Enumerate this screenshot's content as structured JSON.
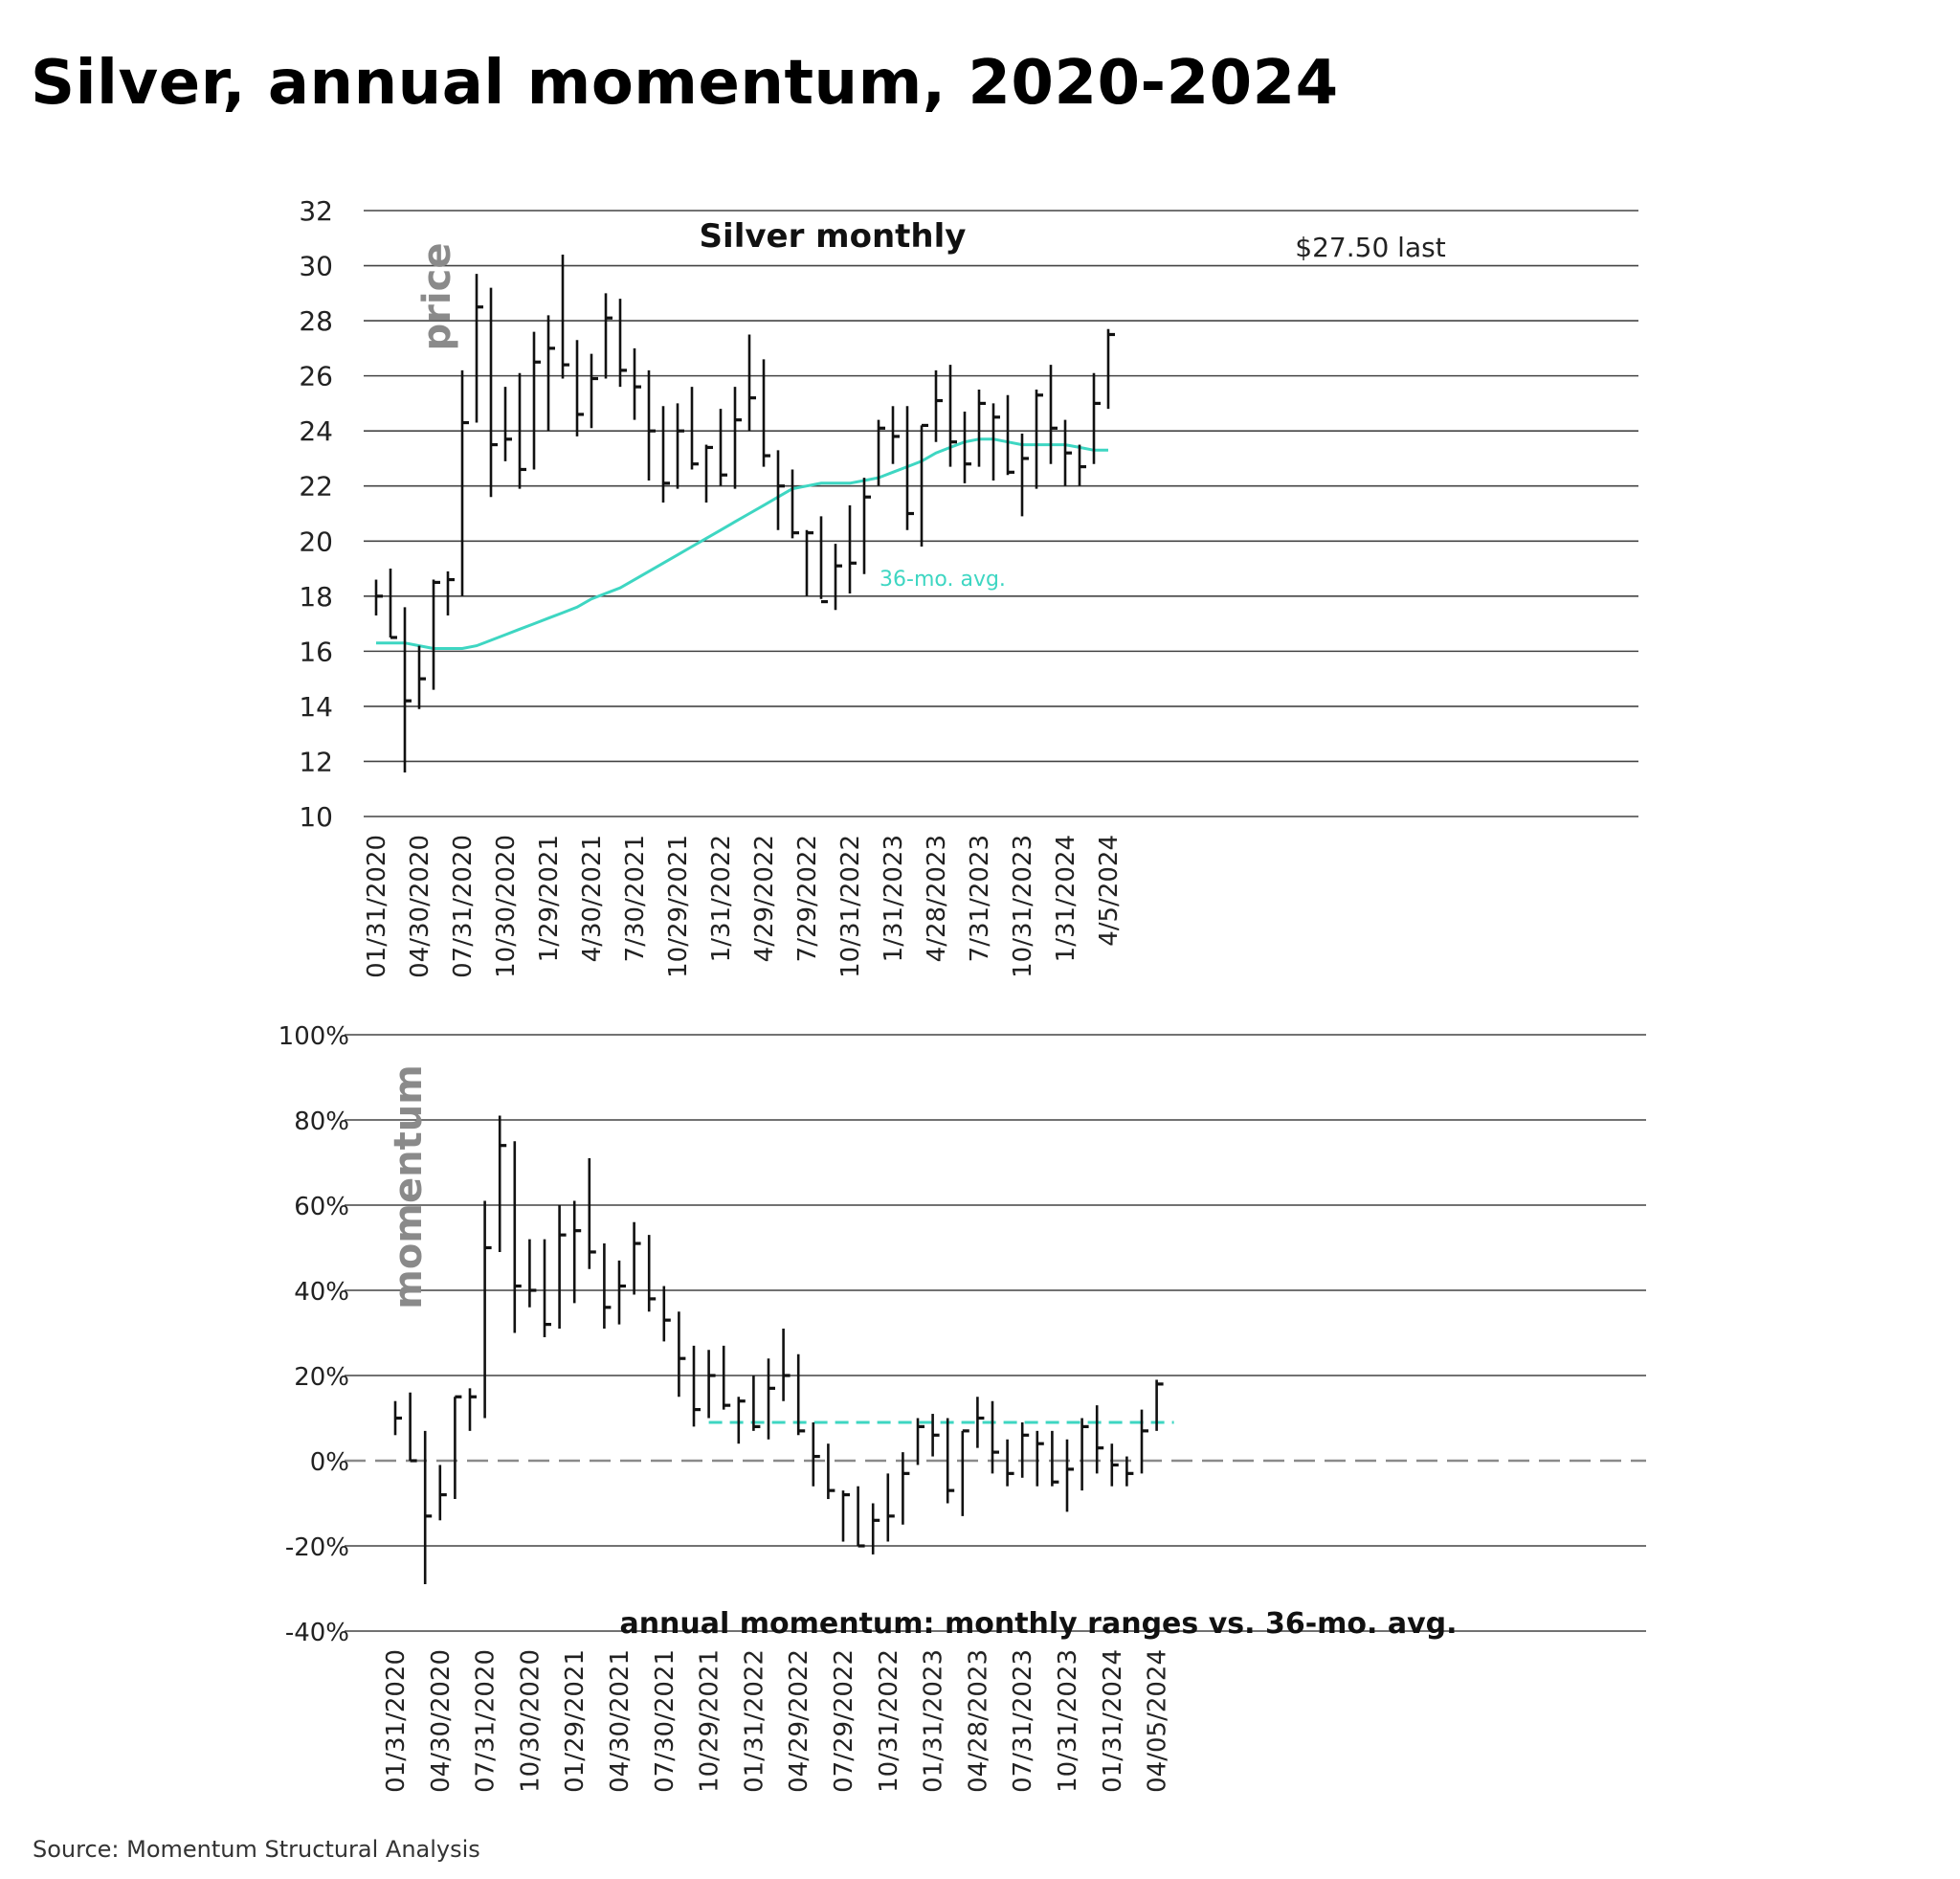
{
  "title": "Silver, annual momentum, 2020-2024",
  "source": "Source: Momentum Structural Analysis",
  "colors": {
    "bars": "#111111",
    "avg": "#3ed6c2",
    "grid": "#444444",
    "zero": "#888888",
    "watermark": "#8a8a8a"
  },
  "chart_data": [
    {
      "type": "ohlc",
      "title": "Silver monthly",
      "side_label": "price",
      "annotation": "$27.50 last",
      "avg_label": "36-mo. avg.",
      "ylim": [
        10,
        32
      ],
      "yticks": [
        10,
        12,
        14,
        16,
        18,
        20,
        22,
        24,
        26,
        28,
        30,
        32
      ],
      "xtick_labels": [
        "01/31/2020",
        "04/30/2020",
        "07/31/2020",
        "10/30/2020",
        "1/29/2021",
        "4/30/2021",
        "7/30/2021",
        "10/29/2021",
        "1/31/2022",
        "4/29/2022",
        "7/29/2022",
        "10/31/2022",
        "1/31/2023",
        "4/28/2023",
        "7/31/2023",
        "10/31/2023",
        "1/31/2024",
        "4/5/2024"
      ],
      "bars": [
        {
          "high": 18.6,
          "low": 17.3,
          "close": 18.0
        },
        {
          "high": 19.0,
          "low": 16.5,
          "close": 16.5
        },
        {
          "high": 17.6,
          "low": 11.6,
          "close": 14.2
        },
        {
          "high": 16.2,
          "low": 13.9,
          "close": 15.0
        },
        {
          "high": 18.6,
          "low": 14.6,
          "close": 18.5
        },
        {
          "high": 18.9,
          "low": 17.3,
          "close": 18.6
        },
        {
          "high": 26.2,
          "low": 18.0,
          "close": 24.3
        },
        {
          "high": 29.7,
          "low": 24.3,
          "close": 28.5
        },
        {
          "high": 29.2,
          "low": 21.6,
          "close": 23.5
        },
        {
          "high": 25.6,
          "low": 22.9,
          "close": 23.7
        },
        {
          "high": 26.1,
          "low": 21.9,
          "close": 22.6
        },
        {
          "high": 27.6,
          "low": 22.6,
          "close": 26.5
        },
        {
          "high": 28.2,
          "low": 24.0,
          "close": 27.0
        },
        {
          "high": 30.4,
          "low": 25.9,
          "close": 26.4
        },
        {
          "high": 27.3,
          "low": 23.8,
          "close": 24.6
        },
        {
          "high": 26.8,
          "low": 24.1,
          "close": 25.9
        },
        {
          "high": 29.0,
          "low": 25.9,
          "close": 28.1
        },
        {
          "high": 28.8,
          "low": 25.6,
          "close": 26.2
        },
        {
          "high": 27.0,
          "low": 24.4,
          "close": 25.6
        },
        {
          "high": 26.2,
          "low": 22.2,
          "close": 24.0
        },
        {
          "high": 24.9,
          "low": 21.4,
          "close": 22.1
        },
        {
          "high": 25.0,
          "low": 21.9,
          "close": 24.0
        },
        {
          "high": 25.6,
          "low": 22.6,
          "close": 22.8
        },
        {
          "high": 23.5,
          "low": 21.4,
          "close": 23.4
        },
        {
          "high": 24.8,
          "low": 22.0,
          "close": 22.4
        },
        {
          "high": 25.6,
          "low": 21.9,
          "close": 24.4
        },
        {
          "high": 27.5,
          "low": 24.0,
          "close": 25.2
        },
        {
          "high": 26.6,
          "low": 22.7,
          "close": 23.1
        },
        {
          "high": 23.3,
          "low": 20.4,
          "close": 22.0
        },
        {
          "high": 22.6,
          "low": 20.1,
          "close": 20.3
        },
        {
          "high": 20.4,
          "low": 18.0,
          "close": 20.3
        },
        {
          "high": 20.9,
          "low": 17.9,
          "close": 17.8
        },
        {
          "high": 19.9,
          "low": 17.5,
          "close": 19.1
        },
        {
          "high": 21.3,
          "low": 18.1,
          "close": 19.2
        },
        {
          "high": 22.3,
          "low": 18.8,
          "close": 21.6
        },
        {
          "high": 24.4,
          "low": 22.0,
          "close": 24.1
        },
        {
          "high": 24.9,
          "low": 22.8,
          "close": 23.8
        },
        {
          "high": 24.9,
          "low": 20.4,
          "close": 21.0
        },
        {
          "high": 24.2,
          "low": 19.8,
          "close": 24.2
        },
        {
          "high": 26.2,
          "low": 23.6,
          "close": 25.1
        },
        {
          "high": 26.4,
          "low": 22.7,
          "close": 23.6
        },
        {
          "high": 24.7,
          "low": 22.1,
          "close": 22.8
        },
        {
          "high": 25.5,
          "low": 22.7,
          "close": 25.0
        },
        {
          "high": 25.0,
          "low": 22.2,
          "close": 24.5
        },
        {
          "high": 25.3,
          "low": 22.4,
          "close": 22.5
        },
        {
          "high": 23.9,
          "low": 20.9,
          "close": 23.0
        },
        {
          "high": 25.5,
          "low": 21.9,
          "close": 25.3
        },
        {
          "high": 26.4,
          "low": 22.8,
          "close": 24.1
        },
        {
          "high": 24.4,
          "low": 22.0,
          "close": 23.2
        },
        {
          "high": 23.5,
          "low": 22.0,
          "close": 22.7
        },
        {
          "high": 26.1,
          "low": 22.8,
          "close": 25.0
        },
        {
          "high": 27.7,
          "low": 24.8,
          "close": 27.5
        }
      ],
      "avg_series": [
        16.3,
        16.3,
        16.3,
        16.2,
        16.1,
        16.1,
        16.1,
        16.2,
        16.4,
        16.6,
        16.8,
        17.0,
        17.2,
        17.4,
        17.6,
        17.9,
        18.1,
        18.3,
        18.6,
        18.9,
        19.2,
        19.5,
        19.8,
        20.1,
        20.4,
        20.7,
        21.0,
        21.3,
        21.6,
        21.9,
        22.0,
        22.1,
        22.1,
        22.1,
        22.2,
        22.3,
        22.5,
        22.7,
        22.9,
        23.2,
        23.4,
        23.6,
        23.7,
        23.7,
        23.6,
        23.5,
        23.5,
        23.5,
        23.5,
        23.4,
        23.3,
        23.3
      ]
    },
    {
      "type": "ohlc",
      "title": "annual momentum: monthly ranges vs. 36-mo. avg.",
      "side_label": "momentum",
      "ylim": [
        -40,
        100
      ],
      "yticks": [
        -40,
        -20,
        0,
        20,
        40,
        60,
        80,
        100
      ],
      "ytick_labels": [
        "-40%",
        "-20%",
        "0%",
        "20%",
        "40%",
        "60%",
        "80%",
        "100%"
      ],
      "xtick_labels": [
        "01/31/2020",
        "04/30/2020",
        "07/31/2020",
        "10/30/2020",
        "01/29/2021",
        "04/30/2021",
        "07/30/2021",
        "10/29/2021",
        "01/31/2022",
        "04/29/2022",
        "07/29/2022",
        "10/31/2022",
        "01/31/2023",
        "04/28/2023",
        "07/31/2023",
        "10/31/2023",
        "01/31/2024",
        "04/05/2024"
      ],
      "avg_line": {
        "value": 9,
        "from_index": 21,
        "to_index": 51
      },
      "bars": [
        {
          "high": 14,
          "low": 6,
          "close": 10
        },
        {
          "high": 16,
          "low": 0,
          "close": 0
        },
        {
          "high": 7,
          "low": -29,
          "close": -13
        },
        {
          "high": -1,
          "low": -14,
          "close": -8
        },
        {
          "high": 15,
          "low": -9,
          "close": 15
        },
        {
          "high": 17,
          "low": 7,
          "close": 15
        },
        {
          "high": 61,
          "low": 10,
          "close": 50
        },
        {
          "high": 81,
          "low": 49,
          "close": 74
        },
        {
          "high": 75,
          "low": 30,
          "close": 41
        },
        {
          "high": 52,
          "low": 36,
          "close": 40
        },
        {
          "high": 52,
          "low": 29,
          "close": 32
        },
        {
          "high": 60,
          "low": 31,
          "close": 53
        },
        {
          "high": 61,
          "low": 37,
          "close": 54
        },
        {
          "high": 71,
          "low": 45,
          "close": 49
        },
        {
          "high": 51,
          "low": 31,
          "close": 36
        },
        {
          "high": 47,
          "low": 32,
          "close": 41
        },
        {
          "high": 56,
          "low": 39,
          "close": 51
        },
        {
          "high": 53,
          "low": 35,
          "close": 38
        },
        {
          "high": 41,
          "low": 28,
          "close": 33
        },
        {
          "high": 35,
          "low": 15,
          "close": 24
        },
        {
          "high": 27,
          "low": 8,
          "close": 12
        },
        {
          "high": 26,
          "low": 10,
          "close": 20
        },
        {
          "high": 27,
          "low": 12,
          "close": 13
        },
        {
          "high": 15,
          "low": 4,
          "close": 14
        },
        {
          "high": 20,
          "low": 7,
          "close": 8
        },
        {
          "high": 24,
          "low": 5,
          "close": 17
        },
        {
          "high": 31,
          "low": 14,
          "close": 20
        },
        {
          "high": 25,
          "low": 6,
          "close": 7
        },
        {
          "high": 9,
          "low": -6,
          "close": 1
        },
        {
          "high": 4,
          "low": -9,
          "close": -7
        },
        {
          "high": -7,
          "low": -19,
          "close": -8
        },
        {
          "high": -6,
          "low": -20,
          "close": -20
        },
        {
          "high": -10,
          "low": -22,
          "close": -14
        },
        {
          "high": -3,
          "low": -19,
          "close": -13
        },
        {
          "high": 2,
          "low": -15,
          "close": -3
        },
        {
          "high": 10,
          "low": -1,
          "close": 8
        },
        {
          "high": 11,
          "low": 1,
          "close": 6
        },
        {
          "high": 10,
          "low": -10,
          "close": -7
        },
        {
          "high": 7,
          "low": -13,
          "close": 7
        },
        {
          "high": 15,
          "low": 3,
          "close": 10
        },
        {
          "high": 14,
          "low": -3,
          "close": 2
        },
        {
          "high": 5,
          "low": -6,
          "close": -3
        },
        {
          "high": 9,
          "low": -4,
          "close": 6
        },
        {
          "high": 7,
          "low": -6,
          "close": 4
        },
        {
          "high": 7,
          "low": -6,
          "close": -5
        },
        {
          "high": 5,
          "low": -12,
          "close": -2
        },
        {
          "high": 10,
          "low": -7,
          "close": 8
        },
        {
          "high": 13,
          "low": -3,
          "close": 3
        },
        {
          "high": 4,
          "low": -6,
          "close": -1
        },
        {
          "high": 1,
          "low": -6,
          "close": -3
        },
        {
          "high": 12,
          "low": -3,
          "close": 7
        },
        {
          "high": 19,
          "low": 7,
          "close": 18
        }
      ]
    }
  ]
}
